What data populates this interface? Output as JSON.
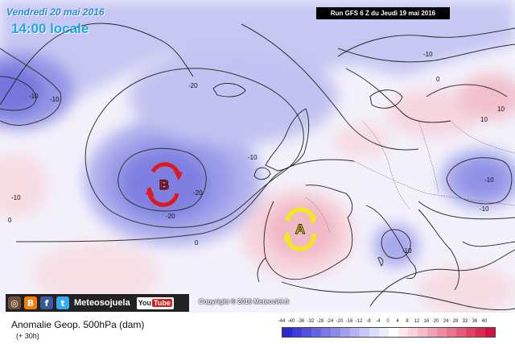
{
  "header": {
    "date_line": "Vendredi 20 mai 2016",
    "time_line": "14:00 locale",
    "run_banner": "Run GFS 6 Z du Jeudi 19 mai 2016"
  },
  "map": {
    "low_marker": "B",
    "high_marker": "A",
    "contour_labels": [
      "-10",
      "-10",
      "-20",
      "-10",
      "-20",
      "-10",
      "-20",
      "0",
      "0",
      "0",
      "-10",
      "-10",
      "-10",
      "10",
      "-10",
      "10"
    ]
  },
  "social": {
    "icons": [
      "instagram-icon",
      "blogger-icon",
      "facebook-icon",
      "twitter-icon"
    ],
    "brand": "Meteosojuela",
    "youtube_you": "You",
    "youtube_tube": "Tube"
  },
  "copyright": "Copyright © 2016 Meteociel.fr",
  "legend": {
    "title": "Anomalie Geop. 500hPa (dam)",
    "subtitle": "(+ 30h)",
    "scale_labels": [
      "-44",
      "-40",
      "-36",
      "-32",
      "-28",
      "-24",
      "-20",
      "-16",
      "-12",
      "-8",
      "-4",
      "0",
      "4",
      "8",
      "12",
      "16",
      "20",
      "24",
      "28",
      "32",
      "36",
      "40"
    ],
    "colors": [
      "#2a2ad0",
      "#3c3cd8",
      "#5050de",
      "#6464e4",
      "#7878e8",
      "#8c8cec",
      "#a0a0f0",
      "#b4b4f4",
      "#c8c8f8",
      "#dcdcfb",
      "#ececfd",
      "#ffffff",
      "#fde8ec",
      "#fad4dc",
      "#f6bcc8",
      "#f2a4b4",
      "#ee8ca0",
      "#ea748c",
      "#e45c78",
      "#de4464",
      "#d82c50",
      "#d0143c"
    ]
  }
}
